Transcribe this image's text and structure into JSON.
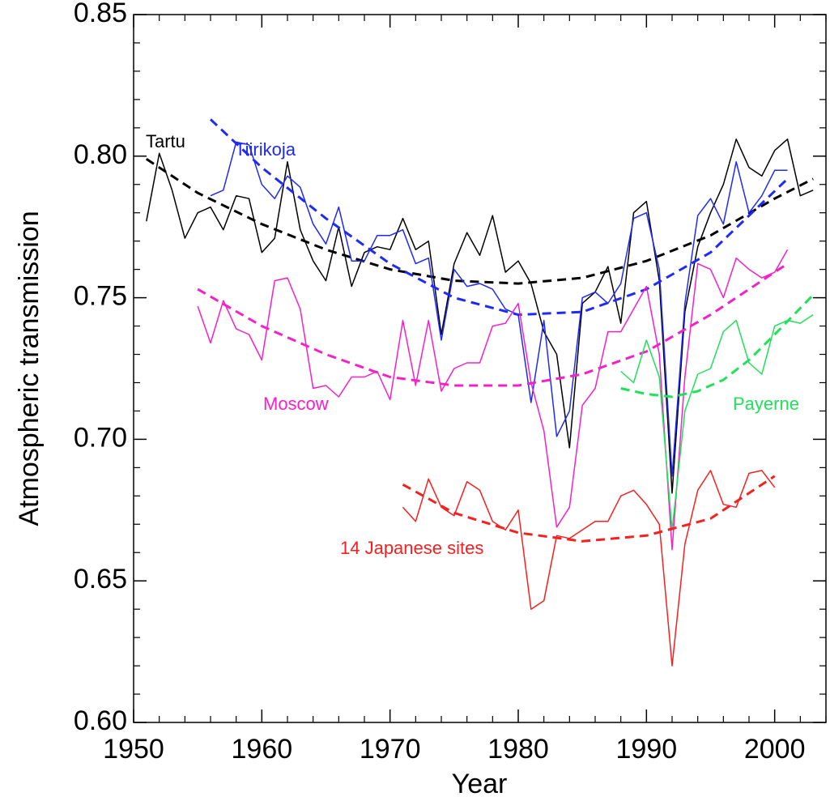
{
  "chart_data": {
    "type": "line",
    "x_label": "Year",
    "y_label": "Atmospheric transmission",
    "xlim": [
      1950,
      2004
    ],
    "ylim": [
      0.6,
      0.85
    ],
    "xticks": [
      1950,
      1960,
      1970,
      1980,
      1990,
      2000
    ],
    "xminorticks": [
      1952,
      1954,
      1956,
      1958,
      1962,
      1964,
      1966,
      1968,
      1972,
      1974,
      1976,
      1978,
      1982,
      1984,
      1986,
      1988,
      1992,
      1994,
      1996,
      1998,
      2002,
      2004
    ],
    "yticks": [
      {
        "value": 0.6,
        "label": "0.60"
      },
      0.65,
      {
        "value": 0.7,
        "label": "0.70"
      },
      0.75,
      {
        "value": 0.8,
        "label": "0.80"
      },
      0.85
    ],
    "yminorticks": [
      0.61,
      0.62,
      0.63,
      0.64,
      0.66,
      0.67,
      0.68,
      0.69,
      0.71,
      0.72,
      0.73,
      0.74,
      0.76,
      0.77,
      0.78,
      0.79,
      0.81,
      0.82,
      0.83,
      0.84
    ],
    "series": [
      {
        "name": "Tartu",
        "color": "#000000",
        "x": [
          1951,
          1952,
          1953,
          1954,
          1955,
          1956,
          1957,
          1958,
          1959,
          1960,
          1961,
          1962,
          1963,
          1964,
          1965,
          1966,
          1967,
          1968,
          1969,
          1970,
          1971,
          1972,
          1973,
          1974,
          1975,
          1976,
          1977,
          1978,
          1979,
          1980,
          1981,
          1982,
          1983,
          1984,
          1985,
          1986,
          1987,
          1988,
          1989,
          1990,
          1991,
          1992,
          1993,
          1994,
          1995,
          1996,
          1997,
          1998,
          1999,
          2000,
          2001,
          2002,
          2003
        ],
        "values": [
          0.777,
          0.801,
          0.788,
          0.771,
          0.78,
          0.782,
          0.774,
          0.786,
          0.785,
          0.766,
          0.771,
          0.798,
          0.774,
          0.763,
          0.756,
          0.775,
          0.754,
          0.766,
          0.768,
          0.767,
          0.778,
          0.767,
          0.77,
          0.737,
          0.762,
          0.773,
          0.765,
          0.779,
          0.759,
          0.763,
          0.755,
          0.738,
          0.73,
          0.697,
          0.748,
          0.752,
          0.761,
          0.741,
          0.78,
          0.784,
          0.756,
          0.681,
          0.745,
          0.768,
          0.78,
          0.79,
          0.806,
          0.796,
          0.793,
          0.802,
          0.806,
          0.786,
          0.788
        ],
        "fit_x": [
          1951,
          1955,
          1960,
          1965,
          1970,
          1975,
          1980,
          1985,
          1990,
          1995,
          2000,
          2003
        ],
        "fit": [
          0.799,
          0.787,
          0.776,
          0.767,
          0.76,
          0.756,
          0.755,
          0.757,
          0.763,
          0.772,
          0.785,
          0.792
        ]
      },
      {
        "name": "Tiirikoja",
        "color": "#1f2af5",
        "x": [
          1956,
          1957,
          1958,
          1959,
          1960,
          1961,
          1962,
          1963,
          1964,
          1965,
          1966,
          1967,
          1968,
          1969,
          1970,
          1971,
          1972,
          1973,
          1974,
          1975,
          1976,
          1977,
          1978,
          1979,
          1980,
          1981,
          1982,
          1983,
          1984,
          1985,
          1986,
          1987,
          1988,
          1989,
          1990,
          1991,
          1992,
          1993,
          1994,
          1995,
          1996,
          1997,
          1998,
          1999,
          2000,
          2001
        ],
        "values": [
          0.786,
          0.788,
          0.805,
          0.804,
          0.79,
          0.785,
          0.793,
          0.789,
          0.776,
          0.769,
          0.782,
          0.763,
          0.763,
          0.772,
          0.772,
          0.774,
          0.762,
          0.764,
          0.735,
          0.76,
          0.754,
          0.755,
          0.753,
          0.746,
          0.744,
          0.713,
          0.742,
          0.701,
          0.71,
          0.75,
          0.752,
          0.748,
          0.755,
          0.778,
          0.78,
          0.76,
          0.687,
          0.748,
          0.779,
          0.785,
          0.776,
          0.798,
          0.78,
          0.786,
          0.795,
          0.795
        ],
        "fit_x": [
          1956,
          1960,
          1965,
          1970,
          1975,
          1980,
          1985,
          1990,
          1995,
          2001
        ],
        "fit": [
          0.813,
          0.796,
          0.778,
          0.762,
          0.75,
          0.744,
          0.745,
          0.753,
          0.766,
          0.792
        ]
      },
      {
        "name": "Moscow",
        "color": "#f520c8",
        "x": [
          1955,
          1956,
          1957,
          1958,
          1959,
          1960,
          1961,
          1962,
          1963,
          1964,
          1965,
          1966,
          1967,
          1968,
          1969,
          1970,
          1971,
          1972,
          1973,
          1974,
          1975,
          1976,
          1977,
          1978,
          1979,
          1980,
          1981,
          1982,
          1983,
          1984,
          1985,
          1986,
          1987,
          1988,
          1989,
          1990,
          1991,
          1992,
          1993,
          1994,
          1995,
          1996,
          1997,
          1998,
          1999,
          2000,
          2001
        ],
        "values": [
          0.747,
          0.734,
          0.749,
          0.739,
          0.737,
          0.728,
          0.756,
          0.757,
          0.746,
          0.718,
          0.719,
          0.715,
          0.722,
          0.722,
          0.724,
          0.714,
          0.742,
          0.719,
          0.742,
          0.717,
          0.725,
          0.727,
          0.727,
          0.74,
          0.741,
          0.748,
          0.72,
          0.703,
          0.669,
          0.676,
          0.712,
          0.718,
          0.738,
          0.738,
          0.746,
          0.754,
          0.73,
          0.661,
          0.722,
          0.762,
          0.76,
          0.75,
          0.764,
          0.76,
          0.757,
          0.759,
          0.767
        ],
        "fit_x": [
          1955,
          1960,
          1965,
          1970,
          1975,
          1980,
          1985,
          1990,
          1995,
          2001
        ],
        "fit": [
          0.753,
          0.74,
          0.73,
          0.722,
          0.719,
          0.719,
          0.723,
          0.731,
          0.744,
          0.762
        ]
      },
      {
        "name": "Payerne",
        "color": "#22e05a",
        "x": [
          1988,
          1989,
          1990,
          1991,
          1992,
          1993,
          1994,
          1995,
          1996,
          1997,
          1998,
          1999,
          2000,
          2001,
          2002,
          2003
        ],
        "values": [
          0.724,
          0.72,
          0.735,
          0.722,
          0.668,
          0.71,
          0.723,
          0.725,
          0.738,
          0.742,
          0.727,
          0.723,
          0.74,
          0.742,
          0.741,
          0.744
        ],
        "fit_x": [
          1988,
          1990,
          1992,
          1994,
          1996,
          1998,
          2000,
          2003
        ],
        "fit": [
          0.718,
          0.716,
          0.715,
          0.717,
          0.721,
          0.728,
          0.737,
          0.751
        ]
      },
      {
        "name": "14 Japanese sites",
        "color": "#f52020",
        "x": [
          1971,
          1972,
          1973,
          1974,
          1975,
          1976,
          1977,
          1978,
          1979,
          1980,
          1981,
          1982,
          1983,
          1984,
          1985,
          1986,
          1987,
          1988,
          1989,
          1990,
          1991,
          1992,
          1993,
          1994,
          1995,
          1996,
          1997,
          1998,
          1999,
          2000
        ],
        "values": [
          0.676,
          0.671,
          0.686,
          0.676,
          0.673,
          0.685,
          0.682,
          0.671,
          0.668,
          0.675,
          0.64,
          0.643,
          0.666,
          0.665,
          0.668,
          0.671,
          0.671,
          0.68,
          0.682,
          0.677,
          0.67,
          0.62,
          0.663,
          0.682,
          0.689,
          0.677,
          0.676,
          0.688,
          0.689,
          0.683
        ],
        "fit_x": [
          1971,
          1975,
          1980,
          1985,
          1990,
          1995,
          2000
        ],
        "fit": [
          0.684,
          0.674,
          0.667,
          0.664,
          0.666,
          0.672,
          0.687
        ]
      }
    ]
  }
}
